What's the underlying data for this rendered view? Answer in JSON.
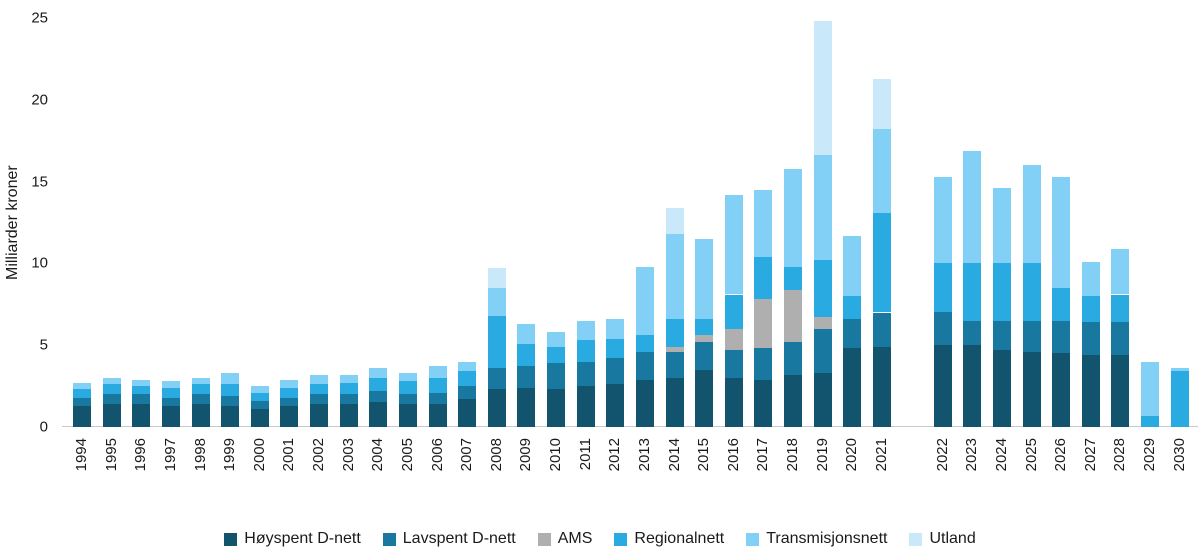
{
  "chart_data": {
    "type": "bar",
    "stacked": true,
    "title": "",
    "xlabel": "",
    "ylabel": "Milliarder kroner",
    "ylim": [
      0,
      25
    ],
    "yticks": [
      0,
      5,
      10,
      15,
      20,
      25
    ],
    "grid": false,
    "legend_position": "bottom",
    "break_after_category": "2021",
    "categories": [
      "1994",
      "1995",
      "1996",
      "1997",
      "1998",
      "1999",
      "2000",
      "2001",
      "2002",
      "2003",
      "2004",
      "2005",
      "2006",
      "2007",
      "2008",
      "2009",
      "2010",
      "2011",
      "2012",
      "2013",
      "2014",
      "2015",
      "2016",
      "2017",
      "2018",
      "2019",
      "2020",
      "2021",
      "2022",
      "2023",
      "2024",
      "2025",
      "2026",
      "2027",
      "2028",
      "2029",
      "2030"
    ],
    "series": [
      {
        "key": "hoyspent-d-nett",
        "name": "Høyspent D-nett",
        "color": "#12536E",
        "values": [
          1.3,
          1.4,
          1.4,
          1.3,
          1.4,
          1.3,
          1.1,
          1.3,
          1.4,
          1.4,
          1.5,
          1.4,
          1.4,
          1.7,
          2.3,
          2.4,
          2.3,
          2.5,
          2.6,
          2.9,
          3.0,
          3.5,
          3.0,
          2.9,
          3.2,
          3.3,
          4.8,
          4.9,
          5.0,
          5.0,
          4.7,
          4.6,
          4.5,
          4.4,
          4.4,
          0,
          0
        ]
      },
      {
        "key": "lavspent-d-nett",
        "name": "Lavspent D-nett",
        "color": "#1878A0",
        "values": [
          0.5,
          0.6,
          0.6,
          0.5,
          0.6,
          0.6,
          0.5,
          0.5,
          0.6,
          0.6,
          0.7,
          0.6,
          0.7,
          0.8,
          1.3,
          1.3,
          1.6,
          1.5,
          1.6,
          1.7,
          1.6,
          1.7,
          1.7,
          1.9,
          2.0,
          2.7,
          1.8,
          2.1,
          2.0,
          1.5,
          1.8,
          1.9,
          2.0,
          2.0,
          2.0,
          0,
          0
        ]
      },
      {
        "key": "ams",
        "name": "AMS",
        "color": "#AFAFAF",
        "values": [
          0,
          0,
          0,
          0,
          0,
          0,
          0,
          0,
          0,
          0,
          0,
          0,
          0,
          0,
          0,
          0,
          0,
          0,
          0,
          0,
          0.3,
          0.4,
          1.3,
          3.0,
          3.2,
          0.7,
          0,
          0,
          0,
          0,
          0,
          0,
          0,
          0,
          0,
          0,
          0
        ]
      },
      {
        "key": "regionalnett",
        "name": "Regionalnett",
        "color": "#29ABE2",
        "values": [
          0.5,
          0.6,
          0.5,
          0.6,
          0.6,
          0.7,
          0.5,
          0.6,
          0.6,
          0.7,
          0.8,
          0.8,
          0.9,
          0.9,
          3.2,
          1.4,
          1.0,
          1.3,
          1.2,
          1.0,
          1.7,
          1.0,
          2.1,
          2.6,
          1.4,
          3.5,
          1.4,
          6.1,
          3.0,
          3.5,
          3.5,
          3.5,
          2.0,
          1.6,
          1.7,
          0.7,
          3.4
        ]
      },
      {
        "key": "transmisjonsnett",
        "name": "Transmisjonsnett",
        "color": "#82D0F5",
        "values": [
          0.4,
          0.4,
          0.4,
          0.4,
          0.4,
          0.7,
          0.4,
          0.5,
          0.6,
          0.5,
          0.6,
          0.5,
          0.7,
          0.6,
          1.7,
          1.2,
          0.9,
          1.2,
          1.2,
          4.2,
          5.2,
          4.9,
          6.1,
          4.1,
          6.0,
          6.4,
          3.7,
          5.1,
          5.3,
          6.9,
          4.6,
          6.0,
          6.8,
          2.1,
          2.8,
          3.3,
          0.2
        ]
      },
      {
        "key": "utland",
        "name": "Utland",
        "color": "#C9E9FA",
        "values": [
          0,
          0,
          0,
          0,
          0,
          0,
          0,
          0,
          0,
          0,
          0,
          0,
          0,
          0,
          1.2,
          0,
          0,
          0,
          0,
          0,
          1.6,
          0,
          0,
          0,
          0,
          8.2,
          0,
          3.1,
          0,
          0,
          0,
          0,
          0,
          0,
          0,
          0,
          0
        ]
      }
    ]
  }
}
